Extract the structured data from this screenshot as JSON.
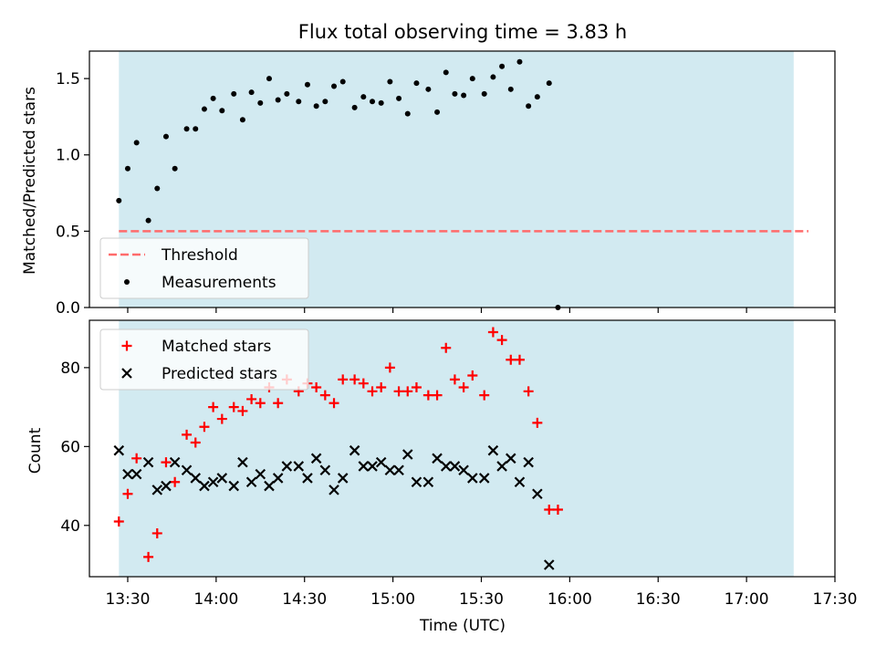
{
  "chart_data": [
    {
      "type": "scatter",
      "title": "Flux total observing time = 3.83 h",
      "xlabel": "",
      "ylabel": "Matched/Predicted stars",
      "xlim": [
        "13:17",
        "17:30"
      ],
      "ylim": [
        0,
        1.68
      ],
      "yticks": [
        "0.0",
        "0.5",
        "1.0",
        "1.5"
      ],
      "grid": false,
      "legend_position": "lower-left",
      "observing_span": {
        "start": "13:27",
        "end": "17:16",
        "color": "#add8e6"
      },
      "threshold": {
        "name": "Threshold",
        "value": 0.5,
        "x_start": "13:27",
        "x_end": "17:21",
        "color": "#ff6b6b",
        "style": "dashed"
      },
      "series": [
        {
          "name": "Measurements",
          "color": "#000000",
          "marker": "dot",
          "points": [
            [
              "13:27",
              0.7
            ],
            [
              "13:30",
              0.91
            ],
            [
              "13:33",
              1.08
            ],
            [
              "13:37",
              0.57
            ],
            [
              "13:40",
              0.78
            ],
            [
              "13:43",
              1.12
            ],
            [
              "13:46",
              0.91
            ],
            [
              "13:50",
              1.17
            ],
            [
              "13:53",
              1.17
            ],
            [
              "13:56",
              1.3
            ],
            [
              "13:59",
              1.37
            ],
            [
              "14:02",
              1.29
            ],
            [
              "14:06",
              1.4
            ],
            [
              "14:09",
              1.23
            ],
            [
              "14:12",
              1.41
            ],
            [
              "14:15",
              1.34
            ],
            [
              "14:18",
              1.5
            ],
            [
              "14:21",
              1.36
            ],
            [
              "14:24",
              1.4
            ],
            [
              "14:28",
              1.35
            ],
            [
              "14:31",
              1.46
            ],
            [
              "14:34",
              1.32
            ],
            [
              "14:37",
              1.35
            ],
            [
              "14:40",
              1.45
            ],
            [
              "14:43",
              1.48
            ],
            [
              "14:47",
              1.31
            ],
            [
              "14:50",
              1.38
            ],
            [
              "14:53",
              1.35
            ],
            [
              "14:56",
              1.34
            ],
            [
              "14:59",
              1.48
            ],
            [
              "15:02",
              1.37
            ],
            [
              "15:05",
              1.27
            ],
            [
              "15:08",
              1.47
            ],
            [
              "15:12",
              1.43
            ],
            [
              "15:15",
              1.28
            ],
            [
              "15:18",
              1.54
            ],
            [
              "15:21",
              1.4
            ],
            [
              "15:24",
              1.39
            ],
            [
              "15:27",
              1.5
            ],
            [
              "15:31",
              1.4
            ],
            [
              "15:34",
              1.51
            ],
            [
              "15:37",
              1.58
            ],
            [
              "15:40",
              1.43
            ],
            [
              "15:43",
              1.61
            ],
            [
              "15:46",
              1.32
            ],
            [
              "15:49",
              1.38
            ],
            [
              "15:53",
              1.47
            ],
            [
              "15:56",
              0.0
            ]
          ]
        }
      ]
    },
    {
      "type": "scatter",
      "title": "",
      "xlabel": "Time (UTC)",
      "ylabel": "Count",
      "xlim": [
        "13:17",
        "17:30"
      ],
      "ylim": [
        27,
        92
      ],
      "xticks": [
        "13:30",
        "14:00",
        "14:30",
        "15:00",
        "15:30",
        "16:00",
        "16:30",
        "17:00",
        "17:30"
      ],
      "yticks": [
        "40",
        "60",
        "80"
      ],
      "grid": false,
      "legend_position": "upper-left",
      "observing_span": {
        "start": "13:27",
        "end": "17:16",
        "color": "#add8e6"
      },
      "series": [
        {
          "name": "Matched stars",
          "color": "#ff0000",
          "marker": "plus",
          "points": [
            [
              "13:27",
              41
            ],
            [
              "13:30",
              48
            ],
            [
              "13:33",
              57
            ],
            [
              "13:37",
              32
            ],
            [
              "13:40",
              38
            ],
            [
              "13:43",
              56
            ],
            [
              "13:46",
              51
            ],
            [
              "13:50",
              63
            ],
            [
              "13:53",
              61
            ],
            [
              "13:56",
              65
            ],
            [
              "13:59",
              70
            ],
            [
              "14:02",
              67
            ],
            [
              "14:06",
              70
            ],
            [
              "14:09",
              69
            ],
            [
              "14:12",
              72
            ],
            [
              "14:15",
              71
            ],
            [
              "14:18",
              75
            ],
            [
              "14:21",
              71
            ],
            [
              "14:24",
              77
            ],
            [
              "14:28",
              74
            ],
            [
              "14:31",
              76
            ],
            [
              "14:34",
              75
            ],
            [
              "14:37",
              73
            ],
            [
              "14:40",
              71
            ],
            [
              "14:43",
              77
            ],
            [
              "14:47",
              77
            ],
            [
              "14:50",
              76
            ],
            [
              "14:53",
              74
            ],
            [
              "14:56",
              75
            ],
            [
              "14:59",
              80
            ],
            [
              "15:02",
              74
            ],
            [
              "15:05",
              74
            ],
            [
              "15:08",
              75
            ],
            [
              "15:12",
              73
            ],
            [
              "15:15",
              73
            ],
            [
              "15:18",
              85
            ],
            [
              "15:21",
              77
            ],
            [
              "15:24",
              75
            ],
            [
              "15:27",
              78
            ],
            [
              "15:31",
              73
            ],
            [
              "15:34",
              89
            ],
            [
              "15:37",
              87
            ],
            [
              "15:40",
              82
            ],
            [
              "15:43",
              82
            ],
            [
              "15:46",
              74
            ],
            [
              "15:49",
              66
            ],
            [
              "15:53",
              44
            ],
            [
              "15:56",
              44
            ]
          ]
        },
        {
          "name": "Predicted stars",
          "color": "#000000",
          "marker": "x",
          "points": [
            [
              "13:27",
              59
            ],
            [
              "13:30",
              53
            ],
            [
              "13:33",
              53
            ],
            [
              "13:37",
              56
            ],
            [
              "13:40",
              49
            ],
            [
              "13:43",
              50
            ],
            [
              "13:46",
              56
            ],
            [
              "13:50",
              54
            ],
            [
              "13:53",
              52
            ],
            [
              "13:56",
              50
            ],
            [
              "13:59",
              51
            ],
            [
              "14:02",
              52
            ],
            [
              "14:06",
              50
            ],
            [
              "14:09",
              56
            ],
            [
              "14:12",
              51
            ],
            [
              "14:15",
              53
            ],
            [
              "14:18",
              50
            ],
            [
              "14:21",
              52
            ],
            [
              "14:24",
              55
            ],
            [
              "14:28",
              55
            ],
            [
              "14:31",
              52
            ],
            [
              "14:34",
              57
            ],
            [
              "14:37",
              54
            ],
            [
              "14:40",
              49
            ],
            [
              "14:43",
              52
            ],
            [
              "14:47",
              59
            ],
            [
              "14:50",
              55
            ],
            [
              "14:53",
              55
            ],
            [
              "14:56",
              56
            ],
            [
              "14:59",
              54
            ],
            [
              "15:02",
              54
            ],
            [
              "15:05",
              58
            ],
            [
              "15:08",
              51
            ],
            [
              "15:12",
              51
            ],
            [
              "15:15",
              57
            ],
            [
              "15:18",
              55
            ],
            [
              "15:21",
              55
            ],
            [
              "15:24",
              54
            ],
            [
              "15:27",
              52
            ],
            [
              "15:31",
              52
            ],
            [
              "15:34",
              59
            ],
            [
              "15:37",
              55
            ],
            [
              "15:40",
              57
            ],
            [
              "15:43",
              51
            ],
            [
              "15:46",
              56
            ],
            [
              "15:49",
              48
            ],
            [
              "15:53",
              30
            ]
          ]
        }
      ]
    }
  ]
}
